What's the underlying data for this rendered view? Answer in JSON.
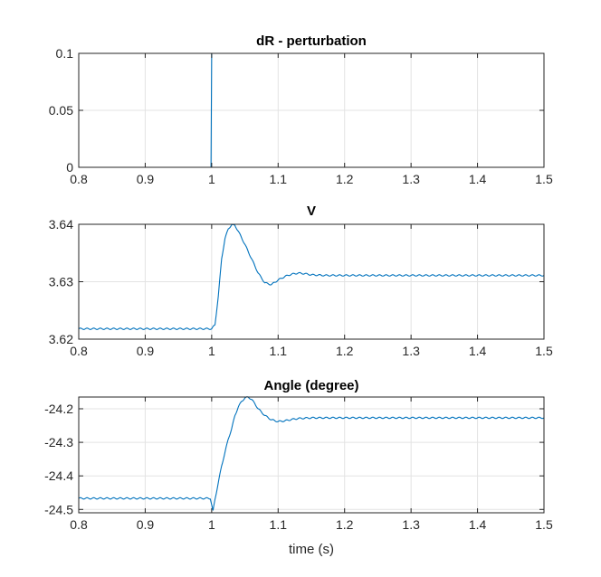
{
  "chart_data": [
    {
      "type": "line",
      "title": "dR - perturbation",
      "xlabel": "",
      "ylabel": "",
      "xlim": [
        0.8,
        1.5
      ],
      "ylim": [
        0,
        0.1
      ],
      "x_ticks": [
        "0.8",
        "0.9",
        "1",
        "1.1",
        "1.2",
        "1.3",
        "1.4",
        "1.5"
      ],
      "y_ticks": [
        "0",
        "0.05",
        "0.1"
      ],
      "grid": true,
      "series": [
        {
          "x": [
            0.8,
            0.999,
            1.0,
            1.5
          ],
          "y": [
            0,
            0,
            0.1,
            0.1
          ]
        }
      ]
    },
    {
      "type": "line",
      "title": "V",
      "xlabel": "",
      "ylabel": "",
      "xlim": [
        0.8,
        1.5
      ],
      "ylim": [
        3.62,
        3.64
      ],
      "x_ticks": [
        "0.8",
        "0.9",
        "1",
        "1.1",
        "1.2",
        "1.3",
        "1.4",
        "1.5"
      ],
      "y_ticks": [
        "3.62",
        "3.63",
        "3.64"
      ],
      "grid": true,
      "series": [
        {
          "x": [
            0.8,
            1.0,
            1.005,
            1.01,
            1.015,
            1.02,
            1.025,
            1.03,
            1.035,
            1.04,
            1.05,
            1.06,
            1.07,
            1.08,
            1.09,
            1.1,
            1.11,
            1.12,
            1.13,
            1.14,
            1.15,
            1.17,
            1.2,
            1.3,
            1.4,
            1.5
          ],
          "y": [
            3.6218,
            3.6218,
            3.6225,
            3.6275,
            3.634,
            3.6375,
            3.6392,
            3.6399,
            3.6398,
            3.6388,
            3.6365,
            3.634,
            3.6315,
            3.6298,
            3.6295,
            3.6303,
            3.6309,
            3.6313,
            3.6315,
            3.6314,
            3.6312,
            3.6311,
            3.6311,
            3.6311,
            3.6311,
            3.6311
          ]
        }
      ]
    },
    {
      "type": "line",
      "title": "Angle (degree)",
      "xlabel": "time (s)",
      "ylabel": "",
      "xlim": [
        0.8,
        1.5
      ],
      "ylim": [
        -24.51,
        -24.165
      ],
      "x_ticks": [
        "0.8",
        "0.9",
        "1",
        "1.1",
        "1.2",
        "1.3",
        "1.4",
        "1.5"
      ],
      "y_ticks": [
        "-24.5",
        "-24.4",
        "-24.3",
        "-24.2"
      ],
      "grid": true,
      "series": [
        {
          "x": [
            0.8,
            0.998,
            1.002,
            1.005,
            1.01,
            1.015,
            1.02,
            1.025,
            1.03,
            1.035,
            1.04,
            1.045,
            1.05,
            1.055,
            1.06,
            1.065,
            1.07,
            1.08,
            1.09,
            1.1,
            1.11,
            1.12,
            1.13,
            1.15,
            1.2,
            1.3,
            1.4,
            1.5
          ],
          "y": [
            -24.467,
            -24.467,
            -24.505,
            -24.47,
            -24.42,
            -24.37,
            -24.33,
            -24.29,
            -24.26,
            -24.22,
            -24.195,
            -24.178,
            -24.168,
            -24.165,
            -24.172,
            -24.185,
            -24.2,
            -24.22,
            -24.233,
            -24.238,
            -24.236,
            -24.232,
            -24.229,
            -24.227,
            -24.227,
            -24.227,
            -24.227,
            -24.227
          ]
        }
      ]
    }
  ]
}
